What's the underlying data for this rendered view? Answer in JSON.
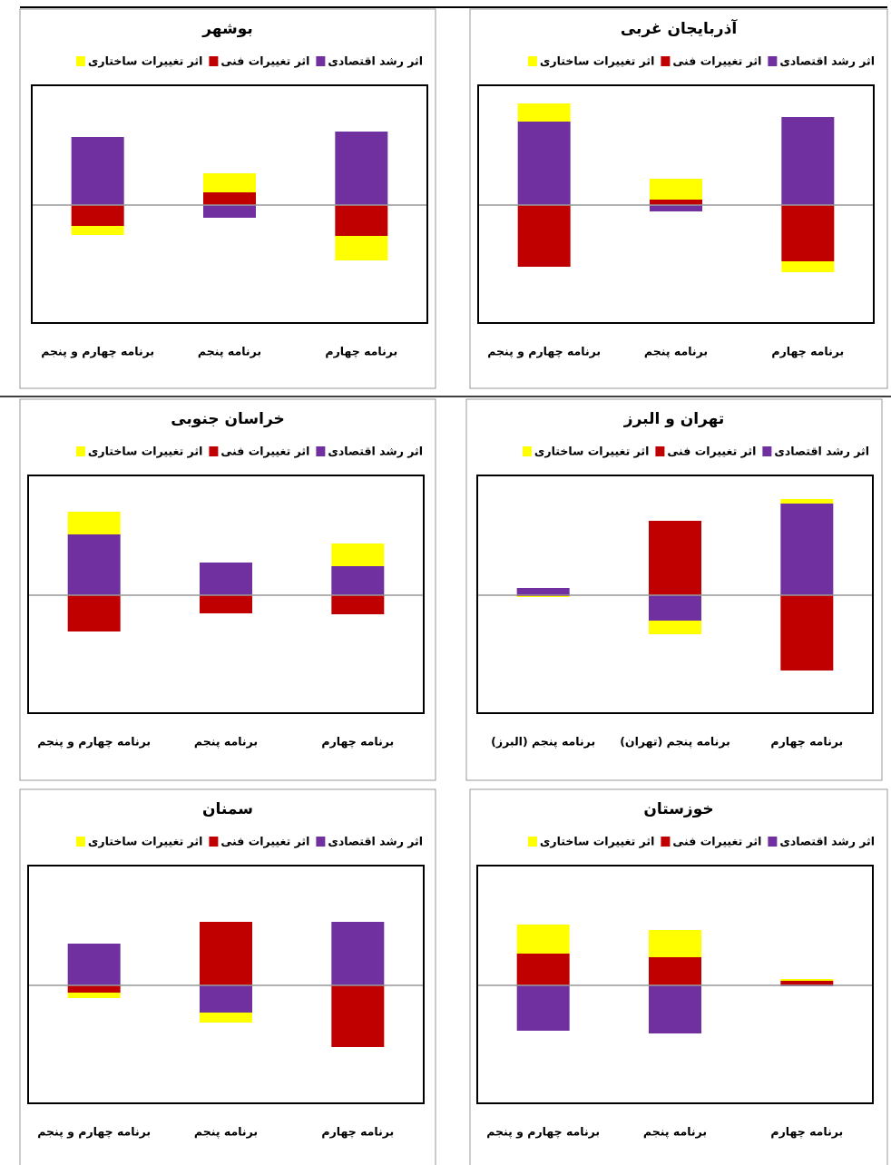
{
  "chart_data": [
    {
      "type": "bar",
      "stacked": true,
      "title": "آذربایجان غربی",
      "categories": [
        "برنامه چهارم",
        "برنامه پنجم",
        "برنامه چهارم و پنجم"
      ],
      "ylim": [
        -130,
        132
      ],
      "series": [
        {
          "name": "اثر رشد اقتصادی",
          "color": "#7030a0",
          "values": [
            97,
            -7,
            92
          ]
        },
        {
          "name": "اثر تغییرات فنی",
          "color": "#c00000",
          "values": [
            -62,
            6,
            -68
          ]
        },
        {
          "name": "اثر تغییرات ساختاری",
          "color": "#ffff00",
          "values": [
            -12,
            23,
            20
          ]
        }
      ]
    },
    {
      "type": "bar",
      "stacked": true,
      "title": "بوشهر",
      "categories": [
        "برنامه چهارم",
        "برنامه پنجم",
        "برنامه چهارم و پنجم"
      ],
      "ylim": [
        -130,
        132
      ],
      "series": [
        {
          "name": "اثر رشد اقتصادی",
          "color": "#7030a0",
          "values": [
            81,
            -14,
            75
          ]
        },
        {
          "name": "اثر تغییرات فنی",
          "color": "#c00000",
          "values": [
            -34,
            14,
            -23
          ]
        },
        {
          "name": "اثر تغییرات ساختاری",
          "color": "#ffff00",
          "values": [
            -27,
            21,
            -10
          ]
        }
      ]
    },
    {
      "type": "bar",
      "stacked": true,
      "title": "تهران و البرز",
      "categories": [
        "برنامه چهارم",
        "برنامه پنجم (تهران)",
        "برنامه پنجم (البرز)"
      ],
      "ylim": [
        -130,
        132
      ],
      "series": [
        {
          "name": "اثر رشد اقتصادی",
          "color": "#7030a0",
          "values": [
            101,
            -28,
            8
          ]
        },
        {
          "name": "اثر تغییرات فنی",
          "color": "#c00000",
          "values": [
            -83,
            82,
            -1
          ]
        },
        {
          "name": "اثر تغییرات ساختاری",
          "color": "#ffff00",
          "values": [
            5,
            -15,
            -1
          ]
        }
      ]
    },
    {
      "type": "bar",
      "stacked": true,
      "title": "خراسان جنوبی",
      "categories": [
        "برنامه چهارم",
        "برنامه پنجم",
        "برنامه چهارم و پنجم"
      ],
      "ylim": [
        -130,
        132
      ],
      "series": [
        {
          "name": "اثر رشد اقتصادی",
          "color": "#7030a0",
          "values": [
            32,
            36,
            67
          ]
        },
        {
          "name": "اثر تغییرات فنی",
          "color": "#c00000",
          "values": [
            -21,
            -20,
            -40
          ]
        },
        {
          "name": "اثر تغییرات ساختاری",
          "color": "#ffff00",
          "values": [
            25,
            0,
            25
          ]
        }
      ]
    },
    {
      "type": "bar",
      "stacked": true,
      "title": "خوزستان",
      "categories": [
        "برنامه چهارم",
        "برنامه پنجم",
        "برنامه چهارم و پنجم"
      ],
      "ylim": [
        -130,
        132
      ],
      "series": [
        {
          "name": "اثر رشد اقتصادی",
          "color": "#7030a0",
          "values": [
            -1,
            -53,
            -50
          ]
        },
        {
          "name": "اثر تغییرات فنی",
          "color": "#c00000",
          "values": [
            5,
            31,
            35
          ]
        },
        {
          "name": "اثر تغییرات ساختاری",
          "color": "#ffff00",
          "values": [
            2,
            30,
            32
          ]
        }
      ]
    },
    {
      "type": "bar",
      "stacked": true,
      "title": "سمنان",
      "categories": [
        "برنامه چهارم",
        "برنامه پنجم",
        "برنامه چهارم و پنجم"
      ],
      "ylim": [
        -130,
        132
      ],
      "series": [
        {
          "name": "اثر رشد اقتصادی",
          "color": "#7030a0",
          "values": [
            70,
            -30,
            46
          ]
        },
        {
          "name": "اثر تغییرات فنی",
          "color": "#c00000",
          "values": [
            -68,
            70,
            -8
          ]
        },
        {
          "name": "اثر تغییرات ساختاری",
          "color": "#ffff00",
          "values": [
            0,
            -11,
            -6
          ]
        }
      ]
    }
  ]
}
